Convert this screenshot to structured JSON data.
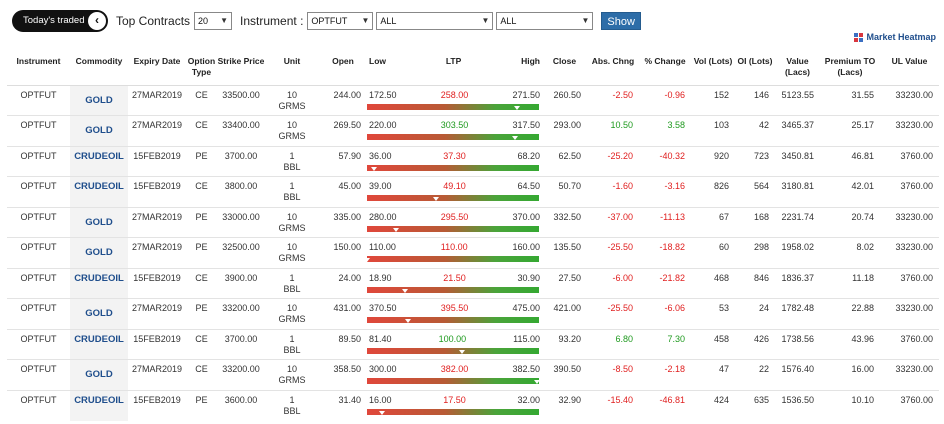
{
  "toolbar": {
    "toggle_label": "Today's traded",
    "toggle_icon": "chevron-left-icon",
    "top_contracts_label": "Top Contracts",
    "top_contracts_value": "20",
    "instrument_label": "Instrument :",
    "instrument_value": "OPTFUT",
    "filter1_value": "ALL",
    "filter2_value": "ALL",
    "show_label": "Show"
  },
  "heatmap_link": "Market Heatmap",
  "colors": {
    "up": "#1f9a1f",
    "down": "#e02020",
    "link": "#1f4e8c",
    "button": "#2d6da8"
  },
  "columns": {
    "instrument": "Instrument",
    "commodity": "Commodity",
    "expiry": "Expiry Date",
    "option_type": "Option Type",
    "strike": "Strike Price",
    "unit": "Unit",
    "open": "Open",
    "low": "Low",
    "ltp": "LTP",
    "high": "High",
    "close": "Close",
    "abs_chng": "Abs. Chng",
    "pct_change": "% Change",
    "vol": "Vol (Lots)",
    "oi": "OI (Lots)",
    "value": "Value (Lacs)",
    "premium": "Premium TO (Lacs)",
    "ul_value": "UL Value"
  },
  "rows": [
    {
      "instrument": "OPTFUT",
      "commodity": "GOLD",
      "expiry": "27MAR2019",
      "type": "CE",
      "strike": "33500.00",
      "unit_qty": "10",
      "unit_name": "GRMS",
      "open": "244.00",
      "low": "172.50",
      "ltp": "258.00",
      "high": "271.50",
      "close": "260.50",
      "abs": "-2.50",
      "pct": "-0.96",
      "vol": "152",
      "oi": "146",
      "value": "5123.55",
      "premium": "31.55",
      "ul": "33230.00",
      "dir": "down",
      "ltp_dir": "down",
      "marker": 0.87
    },
    {
      "instrument": "OPTFUT",
      "commodity": "GOLD",
      "expiry": "27MAR2019",
      "type": "CE",
      "strike": "33400.00",
      "unit_qty": "10",
      "unit_name": "GRMS",
      "open": "269.50",
      "low": "220.00",
      "ltp": "303.50",
      "high": "317.50",
      "close": "293.00",
      "abs": "10.50",
      "pct": "3.58",
      "vol": "103",
      "oi": "42",
      "value": "3465.37",
      "premium": "25.17",
      "ul": "33230.00",
      "dir": "up",
      "ltp_dir": "up",
      "marker": 0.86
    },
    {
      "instrument": "OPTFUT",
      "commodity": "CRUDEOIL",
      "expiry": "15FEB2019",
      "type": "PE",
      "strike": "3700.00",
      "unit_qty": "1",
      "unit_name": "BBL",
      "open": "57.90",
      "low": "36.00",
      "ltp": "37.30",
      "high": "68.20",
      "close": "62.50",
      "abs": "-25.20",
      "pct": "-40.32",
      "vol": "920",
      "oi": "723",
      "value": "3450.81",
      "premium": "46.81",
      "ul": "3760.00",
      "dir": "down",
      "ltp_dir": "down",
      "marker": 0.04
    },
    {
      "instrument": "OPTFUT",
      "commodity": "CRUDEOIL",
      "expiry": "15FEB2019",
      "type": "CE",
      "strike": "3800.00",
      "unit_qty": "1",
      "unit_name": "BBL",
      "open": "45.00",
      "low": "39.00",
      "ltp": "49.10",
      "high": "64.50",
      "close": "50.70",
      "abs": "-1.60",
      "pct": "-3.16",
      "vol": "826",
      "oi": "564",
      "value": "3180.81",
      "premium": "42.01",
      "ul": "3760.00",
      "dir": "down",
      "ltp_dir": "down",
      "marker": 0.4
    },
    {
      "instrument": "OPTFUT",
      "commodity": "GOLD",
      "expiry": "27MAR2019",
      "type": "PE",
      "strike": "33000.00",
      "unit_qty": "10",
      "unit_name": "GRMS",
      "open": "335.00",
      "low": "280.00",
      "ltp": "295.50",
      "high": "370.00",
      "close": "332.50",
      "abs": "-37.00",
      "pct": "-11.13",
      "vol": "67",
      "oi": "168",
      "value": "2231.74",
      "premium": "20.74",
      "ul": "33230.00",
      "dir": "down",
      "ltp_dir": "down",
      "marker": 0.17
    },
    {
      "instrument": "OPTFUT",
      "commodity": "GOLD",
      "expiry": "27MAR2019",
      "type": "PE",
      "strike": "32500.00",
      "unit_qty": "10",
      "unit_name": "GRMS",
      "open": "150.00",
      "low": "110.00",
      "ltp": "110.00",
      "high": "160.00",
      "close": "135.50",
      "abs": "-25.50",
      "pct": "-18.82",
      "vol": "60",
      "oi": "298",
      "value": "1958.02",
      "premium": "8.02",
      "ul": "33230.00",
      "dir": "down",
      "ltp_dir": "down",
      "marker": 0.0
    },
    {
      "instrument": "OPTFUT",
      "commodity": "CRUDEOIL",
      "expiry": "15FEB2019",
      "type": "CE",
      "strike": "3900.00",
      "unit_qty": "1",
      "unit_name": "BBL",
      "open": "24.00",
      "low": "18.90",
      "ltp": "21.50",
      "high": "30.90",
      "close": "27.50",
      "abs": "-6.00",
      "pct": "-21.82",
      "vol": "468",
      "oi": "846",
      "value": "1836.37",
      "premium": "11.18",
      "ul": "3760.00",
      "dir": "down",
      "ltp_dir": "down",
      "marker": 0.22
    },
    {
      "instrument": "OPTFUT",
      "commodity": "GOLD",
      "expiry": "27MAR2019",
      "type": "PE",
      "strike": "33200.00",
      "unit_qty": "10",
      "unit_name": "GRMS",
      "open": "431.00",
      "low": "370.50",
      "ltp": "395.50",
      "high": "475.00",
      "close": "421.00",
      "abs": "-25.50",
      "pct": "-6.06",
      "vol": "53",
      "oi": "24",
      "value": "1782.48",
      "premium": "22.88",
      "ul": "33230.00",
      "dir": "down",
      "ltp_dir": "down",
      "marker": 0.24
    },
    {
      "instrument": "OPTFUT",
      "commodity": "CRUDEOIL",
      "expiry": "15FEB2019",
      "type": "CE",
      "strike": "3700.00",
      "unit_qty": "1",
      "unit_name": "BBL",
      "open": "89.50",
      "low": "81.40",
      "ltp": "100.00",
      "high": "115.00",
      "close": "93.20",
      "abs": "6.80",
      "pct": "7.30",
      "vol": "458",
      "oi": "426",
      "value": "1738.56",
      "premium": "43.96",
      "ul": "3760.00",
      "dir": "up",
      "ltp_dir": "up",
      "marker": 0.55
    },
    {
      "instrument": "OPTFUT",
      "commodity": "GOLD",
      "expiry": "27MAR2019",
      "type": "CE",
      "strike": "33200.00",
      "unit_qty": "10",
      "unit_name": "GRMS",
      "open": "358.50",
      "low": "300.00",
      "ltp": "382.00",
      "high": "382.50",
      "close": "390.50",
      "abs": "-8.50",
      "pct": "-2.18",
      "vol": "47",
      "oi": "22",
      "value": "1576.40",
      "premium": "16.00",
      "ul": "33230.00",
      "dir": "down",
      "ltp_dir": "down",
      "marker": 0.99
    },
    {
      "instrument": "OPTFUT",
      "commodity": "CRUDEOIL",
      "expiry": "15FEB2019",
      "type": "PE",
      "strike": "3600.00",
      "unit_qty": "1",
      "unit_name": "BBL",
      "open": "31.40",
      "low": "16.00",
      "ltp": "17.50",
      "high": "32.00",
      "close": "32.90",
      "abs": "-15.40",
      "pct": "-46.81",
      "vol": "424",
      "oi": "635",
      "value": "1536.50",
      "premium": "10.10",
      "ul": "3760.00",
      "dir": "down",
      "ltp_dir": "down",
      "marker": 0.09
    }
  ]
}
